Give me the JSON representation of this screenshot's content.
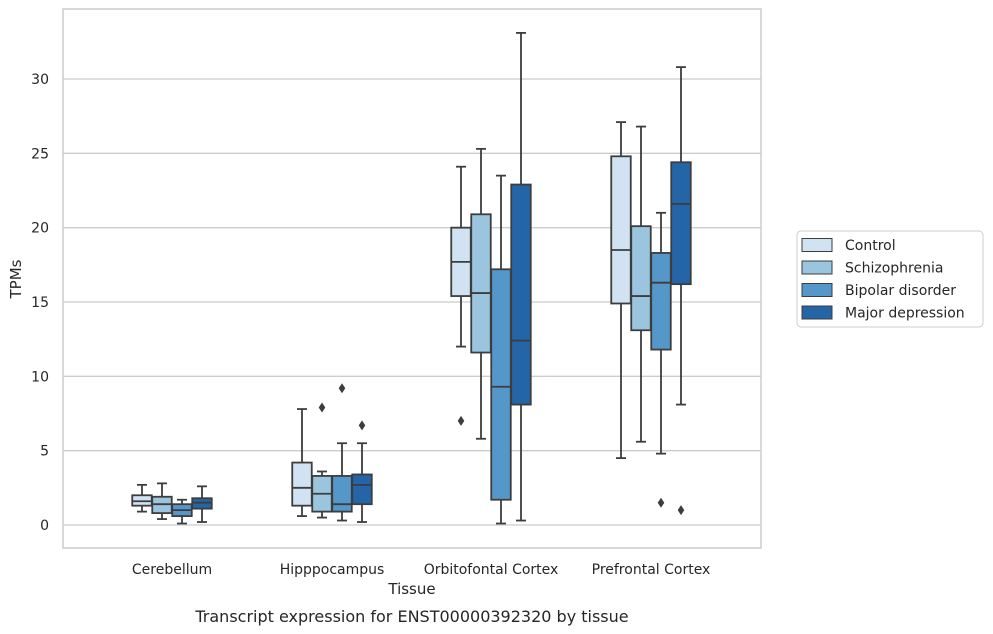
{
  "chart_data": {
    "type": "box",
    "caption": "Transcript expression for ENST00000392320 by tissue",
    "xlabel": "Tissue",
    "ylabel": "TPMs",
    "ylim": [
      -1.5,
      34.2
    ],
    "yticks": [
      0,
      5,
      10,
      15,
      20,
      25,
      30
    ],
    "grid": true,
    "legend_position": "right",
    "categories": [
      "Cerebellum",
      "Hipppocampus",
      "Orbitofontal Cortex",
      "Prefrontal Cortex"
    ],
    "series": [
      {
        "name": "Control",
        "color": "#d1e2f2",
        "boxes": [
          {
            "whislo": 0.9,
            "q1": 1.3,
            "med": 1.6,
            "q3": 2.0,
            "whishi": 2.7,
            "fliers": []
          },
          {
            "whislo": 0.6,
            "q1": 1.3,
            "med": 2.5,
            "q3": 4.2,
            "whishi": 7.8,
            "fliers": []
          },
          {
            "whislo": 12.0,
            "q1": 15.4,
            "med": 17.7,
            "q3": 20.0,
            "whishi": 24.1,
            "fliers": [
              7.0
            ]
          },
          {
            "whislo": 4.5,
            "q1": 14.9,
            "med": 18.5,
            "q3": 24.8,
            "whishi": 27.1,
            "fliers": []
          }
        ]
      },
      {
        "name": "Schizophrenia",
        "color": "#9bc5df",
        "boxes": [
          {
            "whislo": 0.4,
            "q1": 0.8,
            "med": 1.4,
            "q3": 1.9,
            "whishi": 2.8,
            "fliers": []
          },
          {
            "whislo": 0.5,
            "q1": 0.9,
            "med": 2.1,
            "q3": 3.3,
            "whishi": 3.6,
            "fliers": [
              7.9
            ]
          },
          {
            "whislo": 5.8,
            "q1": 11.6,
            "med": 15.6,
            "q3": 20.9,
            "whishi": 25.3,
            "fliers": []
          },
          {
            "whislo": 5.6,
            "q1": 13.1,
            "med": 15.4,
            "q3": 20.1,
            "whishi": 26.8,
            "fliers": []
          }
        ]
      },
      {
        "name": "Bipolar disorder",
        "color": "#5597c9",
        "boxes": [
          {
            "whislo": 0.1,
            "q1": 0.6,
            "med": 1.0,
            "q3": 1.4,
            "whishi": 1.7,
            "fliers": []
          },
          {
            "whislo": 0.3,
            "q1": 0.9,
            "med": 1.4,
            "q3": 3.3,
            "whishi": 5.5,
            "fliers": [
              9.2
            ]
          },
          {
            "whislo": 0.1,
            "q1": 1.7,
            "med": 9.3,
            "q3": 17.2,
            "whishi": 23.5,
            "fliers": []
          },
          {
            "whislo": 4.8,
            "q1": 11.8,
            "med": 16.3,
            "q3": 18.3,
            "whishi": 21.0,
            "fliers": [
              1.5
            ]
          }
        ]
      },
      {
        "name": "Major depression",
        "color": "#2465a8",
        "boxes": [
          {
            "whislo": 0.2,
            "q1": 1.1,
            "med": 1.5,
            "q3": 1.8,
            "whishi": 2.6,
            "fliers": []
          },
          {
            "whislo": 0.2,
            "q1": 1.4,
            "med": 2.7,
            "q3": 3.4,
            "whishi": 5.5,
            "fliers": [
              6.7
            ]
          },
          {
            "whislo": 0.3,
            "q1": 8.1,
            "med": 12.4,
            "q3": 22.9,
            "whishi": 33.1,
            "fliers": []
          },
          {
            "whislo": 8.1,
            "q1": 16.2,
            "med": 21.6,
            "q3": 24.4,
            "whishi": 30.8,
            "fliers": [
              1.0
            ]
          }
        ]
      }
    ]
  }
}
